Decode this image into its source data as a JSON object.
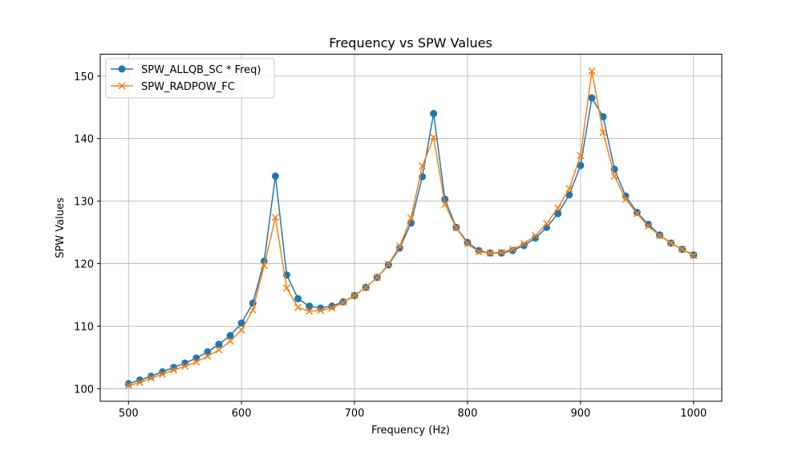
{
  "chart_data": {
    "type": "line",
    "title": "Frequency vs SPW Values",
    "xlabel": "Frequency (Hz)",
    "ylabel": "SPW Values",
    "xlim": [
      475,
      1025
    ],
    "ylim": [
      98,
      153.5
    ],
    "xticks": [
      500,
      600,
      700,
      800,
      900,
      1000
    ],
    "yticks": [
      100,
      110,
      120,
      130,
      140,
      150
    ],
    "grid": true,
    "legend_position": "upper-left",
    "x": [
      500,
      510,
      520,
      530,
      540,
      550,
      560,
      570,
      580,
      590,
      600,
      610,
      620,
      630,
      640,
      650,
      660,
      670,
      680,
      690,
      700,
      710,
      720,
      730,
      740,
      750,
      760,
      770,
      780,
      790,
      800,
      810,
      820,
      830,
      840,
      850,
      860,
      870,
      880,
      890,
      900,
      910,
      920,
      930,
      940,
      950,
      960,
      970,
      980,
      990,
      1000
    ],
    "series": [
      {
        "name": "SPW_ALLQB_SC * Freq)",
        "color": "#1f77b4",
        "marker": "circle",
        "values": [
          100.8,
          101.4,
          102.0,
          102.7,
          103.4,
          104.1,
          104.9,
          105.9,
          107.1,
          108.5,
          110.5,
          113.7,
          120.4,
          134.0,
          118.2,
          114.4,
          113.2,
          112.9,
          113.2,
          113.9,
          114.9,
          116.2,
          117.8,
          119.8,
          122.5,
          126.5,
          133.9,
          144.0,
          130.3,
          125.8,
          123.4,
          122.1,
          121.7,
          121.7,
          122.1,
          122.9,
          124.1,
          125.8,
          128.0,
          131.0,
          135.7,
          146.5,
          143.5,
          135.1,
          130.8,
          128.2,
          126.3,
          124.6,
          123.3,
          122.3,
          121.4
        ]
      },
      {
        "name": "SPW_RADPOW_FC",
        "color": "#ff7f0e",
        "marker": "x",
        "values": [
          100.5,
          101.0,
          101.7,
          102.3,
          103.0,
          103.6,
          104.3,
          105.2,
          106.2,
          107.6,
          109.4,
          112.6,
          119.7,
          127.4,
          116.1,
          113.0,
          112.4,
          112.5,
          112.9,
          113.8,
          114.9,
          116.2,
          117.8,
          119.9,
          122.8,
          127.3,
          135.6,
          140.2,
          129.5,
          125.7,
          123.2,
          121.9,
          121.7,
          121.8,
          122.3,
          123.2,
          124.5,
          126.4,
          128.9,
          132.0,
          137.3,
          150.8,
          141.0,
          134.0,
          130.3,
          128.0,
          126.0,
          124.5,
          123.3,
          122.3,
          121.3
        ]
      }
    ]
  }
}
